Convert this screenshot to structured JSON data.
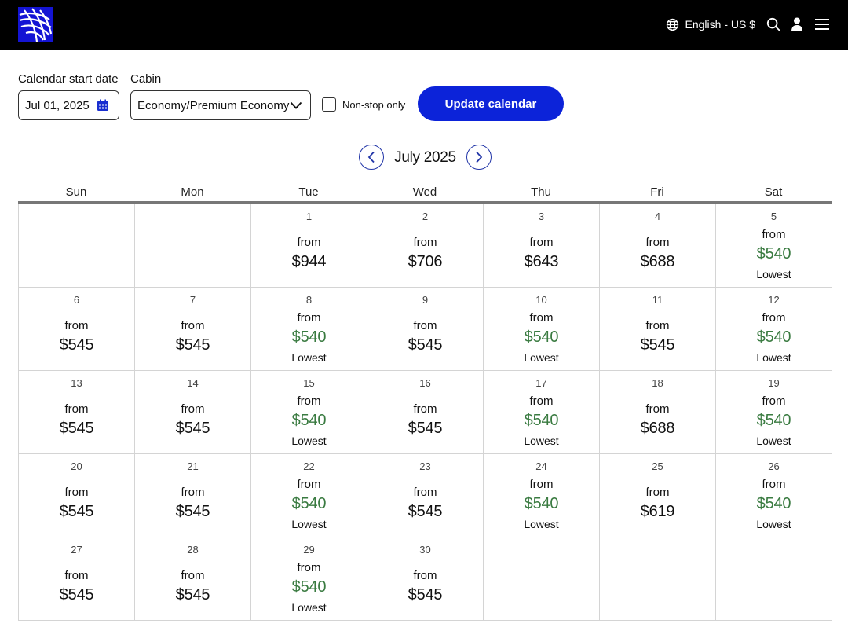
{
  "header": {
    "language_label": "English - US $",
    "icons": [
      "globe-icon",
      "search-icon",
      "user-icon",
      "menu-icon"
    ],
    "background": "#000000",
    "logo_color": "#1414d4"
  },
  "controls": {
    "start_date_label": "Calendar start date",
    "start_date_value": "Jul 01, 2025",
    "cabin_label": "Cabin",
    "cabin_value": "Economy/Premium Economy",
    "nonstop_label": "Non-stop only",
    "nonstop_checked": false,
    "update_button_label": "Update calendar",
    "accent_color": "#0c23d9"
  },
  "calendar": {
    "month_title": "July 2025",
    "weekdays": [
      "Sun",
      "Mon",
      "Tue",
      "Wed",
      "Thu",
      "Fri",
      "Sat"
    ],
    "lowest_color": "#3a7b41",
    "days": [
      {
        "day": "1",
        "from": "from",
        "price": "$944",
        "lowest": ""
      },
      {
        "day": "2",
        "from": "from",
        "price": "$706",
        "lowest": ""
      },
      {
        "day": "3",
        "from": "from",
        "price": "$643",
        "lowest": ""
      },
      {
        "day": "4",
        "from": "from",
        "price": "$688",
        "lowest": ""
      },
      {
        "day": "5",
        "from": "from",
        "price": "$540",
        "lowest": "Lowest"
      },
      {
        "day": "6",
        "from": "from",
        "price": "$545",
        "lowest": ""
      },
      {
        "day": "7",
        "from": "from",
        "price": "$545",
        "lowest": ""
      },
      {
        "day": "8",
        "from": "from",
        "price": "$540",
        "lowest": "Lowest"
      },
      {
        "day": "9",
        "from": "from",
        "price": "$545",
        "lowest": ""
      },
      {
        "day": "10",
        "from": "from",
        "price": "$540",
        "lowest": "Lowest"
      },
      {
        "day": "11",
        "from": "from",
        "price": "$545",
        "lowest": ""
      },
      {
        "day": "12",
        "from": "from",
        "price": "$540",
        "lowest": "Lowest"
      },
      {
        "day": "13",
        "from": "from",
        "price": "$545",
        "lowest": ""
      },
      {
        "day": "14",
        "from": "from",
        "price": "$545",
        "lowest": ""
      },
      {
        "day": "15",
        "from": "from",
        "price": "$540",
        "lowest": "Lowest"
      },
      {
        "day": "16",
        "from": "from",
        "price": "$545",
        "lowest": ""
      },
      {
        "day": "17",
        "from": "from",
        "price": "$540",
        "lowest": "Lowest"
      },
      {
        "day": "18",
        "from": "from",
        "price": "$688",
        "lowest": ""
      },
      {
        "day": "19",
        "from": "from",
        "price": "$540",
        "lowest": "Lowest"
      },
      {
        "day": "20",
        "from": "from",
        "price": "$545",
        "lowest": ""
      },
      {
        "day": "21",
        "from": "from",
        "price": "$545",
        "lowest": ""
      },
      {
        "day": "22",
        "from": "from",
        "price": "$540",
        "lowest": "Lowest"
      },
      {
        "day": "23",
        "from": "from",
        "price": "$545",
        "lowest": ""
      },
      {
        "day": "24",
        "from": "from",
        "price": "$540",
        "lowest": "Lowest"
      },
      {
        "day": "25",
        "from": "from",
        "price": "$619",
        "lowest": ""
      },
      {
        "day": "26",
        "from": "from",
        "price": "$540",
        "lowest": "Lowest"
      },
      {
        "day": "27",
        "from": "from",
        "price": "$545",
        "lowest": ""
      },
      {
        "day": "28",
        "from": "from",
        "price": "$545",
        "lowest": ""
      },
      {
        "day": "29",
        "from": "from",
        "price": "$540",
        "lowest": "Lowest"
      },
      {
        "day": "30",
        "from": "from",
        "price": "$545",
        "lowest": ""
      }
    ]
  }
}
